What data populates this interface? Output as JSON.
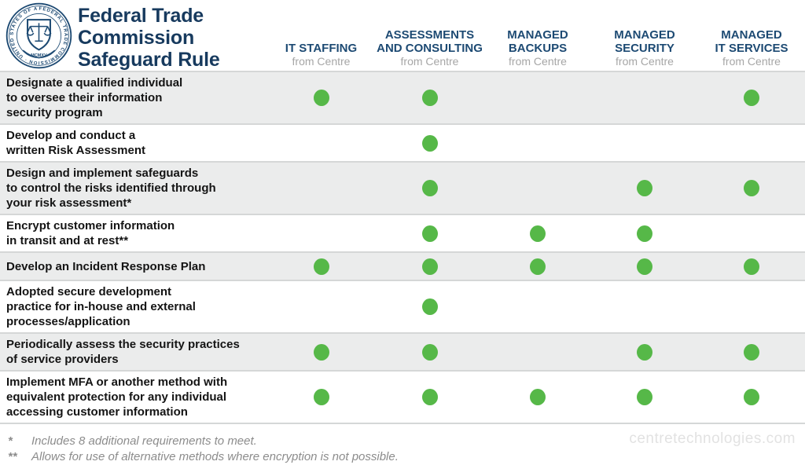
{
  "colors": {
    "navy": "#173a5e",
    "header_navy": "#1d4a73",
    "green": "#56b848",
    "row_alt": "#ebecec",
    "separator": "#d5d7d7",
    "muted": "#a6a6a6",
    "footnote": "#8c8c8c",
    "watermark": "#e2e2e2"
  },
  "header": {
    "title": "Federal Trade\nCommission\nSafeguard Rule",
    "seal": {
      "ring_text": "FEDERAL TRADE COMMISSION · UNITED STATES OF AMERICA ·",
      "year_text": "MCMXV"
    },
    "columns": [
      {
        "label": "IT STAFFING",
        "sublabel": "from Centre"
      },
      {
        "label": "ASSESSMENTS\nAND CONSULTING",
        "sublabel": "from Centre"
      },
      {
        "label": "MANAGED\nBACKUPS",
        "sublabel": "from Centre"
      },
      {
        "label": "MANAGED\nSECURITY",
        "sublabel": "from Centre"
      },
      {
        "label": "MANAGED\nIT SERVICES",
        "sublabel": "from Centre"
      }
    ]
  },
  "table": {
    "rows": [
      {
        "requirement": "Designate a qualified individual\nto oversee their information\nsecurity program",
        "included": [
          true,
          true,
          false,
          false,
          true
        ]
      },
      {
        "requirement": "Develop and conduct a\nwritten Risk Assessment",
        "included": [
          false,
          true,
          false,
          false,
          false
        ]
      },
      {
        "requirement": "Design and implement safeguards\nto control the risks identified through\nyour risk assessment*",
        "included": [
          false,
          true,
          false,
          true,
          true
        ]
      },
      {
        "requirement": "Encrypt customer information\nin transit and at rest**",
        "included": [
          false,
          true,
          true,
          true,
          false
        ]
      },
      {
        "requirement": "Develop an Incident Response Plan",
        "included": [
          true,
          true,
          true,
          true,
          true
        ]
      },
      {
        "requirement": "Adopted secure development\npractice for in-house and external\nprocesses/application",
        "included": [
          false,
          true,
          false,
          false,
          false
        ]
      },
      {
        "requirement": "Periodically assess the security practices\nof service providers",
        "included": [
          true,
          true,
          false,
          true,
          true
        ]
      },
      {
        "requirement": "Implement MFA or another method with\nequivalent protection for any individual\naccessing customer information",
        "included": [
          true,
          true,
          true,
          true,
          true
        ]
      }
    ]
  },
  "footnotes": [
    {
      "marker": "*",
      "text": "Includes 8 additional requirements to meet."
    },
    {
      "marker": "**",
      "text": "Allows for use of alternative methods where encryption is not possible."
    }
  ],
  "footer": {
    "watermark": "centretechnologies.com"
  },
  "chart_data": {
    "type": "table",
    "title": "Federal Trade Commission Safeguard Rule",
    "columns": [
      "IT STAFFING from Centre",
      "ASSESSMENTS AND CONSULTING from Centre",
      "MANAGED BACKUPS from Centre",
      "MANAGED SECURITY from Centre",
      "MANAGED IT SERVICES from Centre"
    ],
    "rows": [
      {
        "requirement": "Designate a qualified individual to oversee their information security program",
        "covered": [
          true,
          true,
          false,
          false,
          true
        ]
      },
      {
        "requirement": "Develop and conduct a written Risk Assessment",
        "covered": [
          false,
          true,
          false,
          false,
          false
        ]
      },
      {
        "requirement": "Design and implement safeguards to control the risks identified through your risk assessment*",
        "covered": [
          false,
          true,
          false,
          true,
          true
        ]
      },
      {
        "requirement": "Encrypt customer information in transit and at rest**",
        "covered": [
          false,
          true,
          true,
          true,
          false
        ]
      },
      {
        "requirement": "Develop an Incident Response Plan",
        "covered": [
          true,
          true,
          true,
          true,
          true
        ]
      },
      {
        "requirement": "Adopted secure development practice for in-house and external processes/application",
        "covered": [
          false,
          true,
          false,
          false,
          false
        ]
      },
      {
        "requirement": "Periodically assess the security practices of service providers",
        "covered": [
          true,
          true,
          false,
          true,
          true
        ]
      },
      {
        "requirement": "Implement MFA or another method with equivalent protection for any individual accessing customer information",
        "covered": [
          true,
          true,
          true,
          true,
          true
        ]
      }
    ],
    "mark": "green dot = requirement covered by service",
    "footnotes": [
      "* Includes 8 additional requirements to meet.",
      "** Allows for use of alternative methods where encryption is not possible."
    ]
  }
}
